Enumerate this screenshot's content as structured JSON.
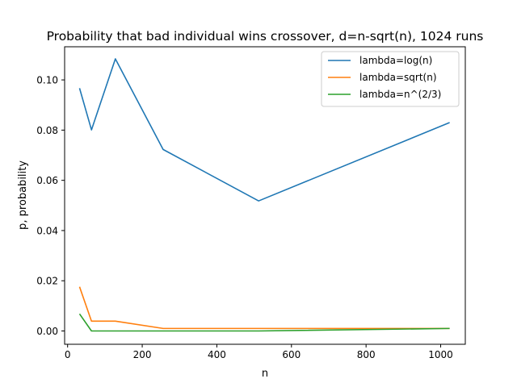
{
  "chart_data": {
    "type": "line",
    "title": "Probability that bad individual wins crossover, d=n-sqrt(n), 1024 runs",
    "xlabel": "n",
    "ylabel": "p, probability",
    "xlim": [
      -8,
      1066
    ],
    "ylim": [
      -0.0053,
      0.1132
    ],
    "xticks": [
      0,
      200,
      400,
      600,
      800,
      1000
    ],
    "xtick_labels": [
      "0",
      "200",
      "400",
      "600",
      "800",
      "1000"
    ],
    "yticks": [
      0.0,
      0.02,
      0.04,
      0.06,
      0.08,
      0.1
    ],
    "ytick_labels": [
      "0.00",
      "0.02",
      "0.04",
      "0.06",
      "0.08",
      "0.10"
    ],
    "grid": false,
    "legend_position": "upper right",
    "x": [
      32,
      64,
      128,
      256,
      512,
      1024
    ],
    "series": [
      {
        "name": "lambda=log(n)",
        "color": "#1f77b4",
        "values": [
          0.0967,
          0.0801,
          0.1084,
          0.0723,
          0.0518,
          0.083
        ]
      },
      {
        "name": "lambda=sqrt(n)",
        "color": "#ff7f0e",
        "values": [
          0.0176,
          0.0039,
          0.0039,
          0.001,
          0.001,
          0.001
        ]
      },
      {
        "name": "lambda=n^(2/3)",
        "color": "#2ca02c",
        "values": [
          0.0068,
          0.0,
          0.0,
          0.0,
          0.0,
          0.001
        ]
      }
    ]
  }
}
